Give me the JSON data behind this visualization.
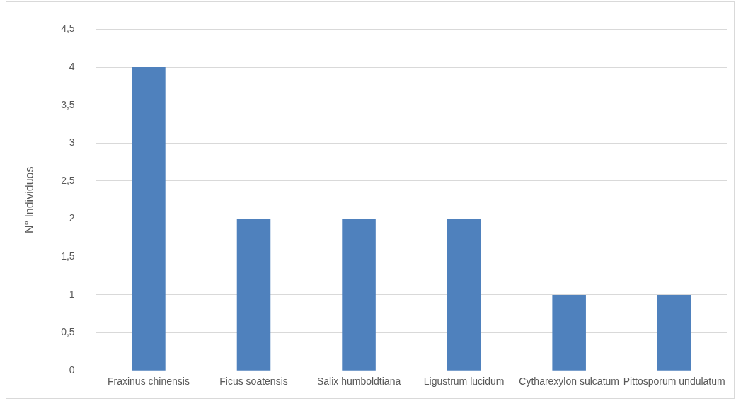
{
  "chart_data": {
    "type": "bar",
    "ylabel": "N° Individuos",
    "categories": [
      "Fraxinus chinensis",
      "Ficus soatensis",
      "Salix humboldtiana",
      "Ligustrum lucidum",
      "Cytharexylon sulcatum",
      "Pittosporum undulatum"
    ],
    "values": [
      4,
      2,
      2,
      2,
      1,
      1
    ],
    "color": "#4f81bd",
    "ylim": [
      0,
      4.5
    ],
    "yticks": [
      0,
      {
        "value": 0.5,
        "label": "0,5"
      },
      1,
      {
        "value": 1.5,
        "label": "1,5"
      },
      2,
      {
        "value": 2.5,
        "label": "2,5"
      },
      3,
      {
        "value": 3.5,
        "label": "3,5"
      },
      4,
      {
        "value": 4.5,
        "label": "4,5"
      }
    ],
    "grid": "y"
  }
}
